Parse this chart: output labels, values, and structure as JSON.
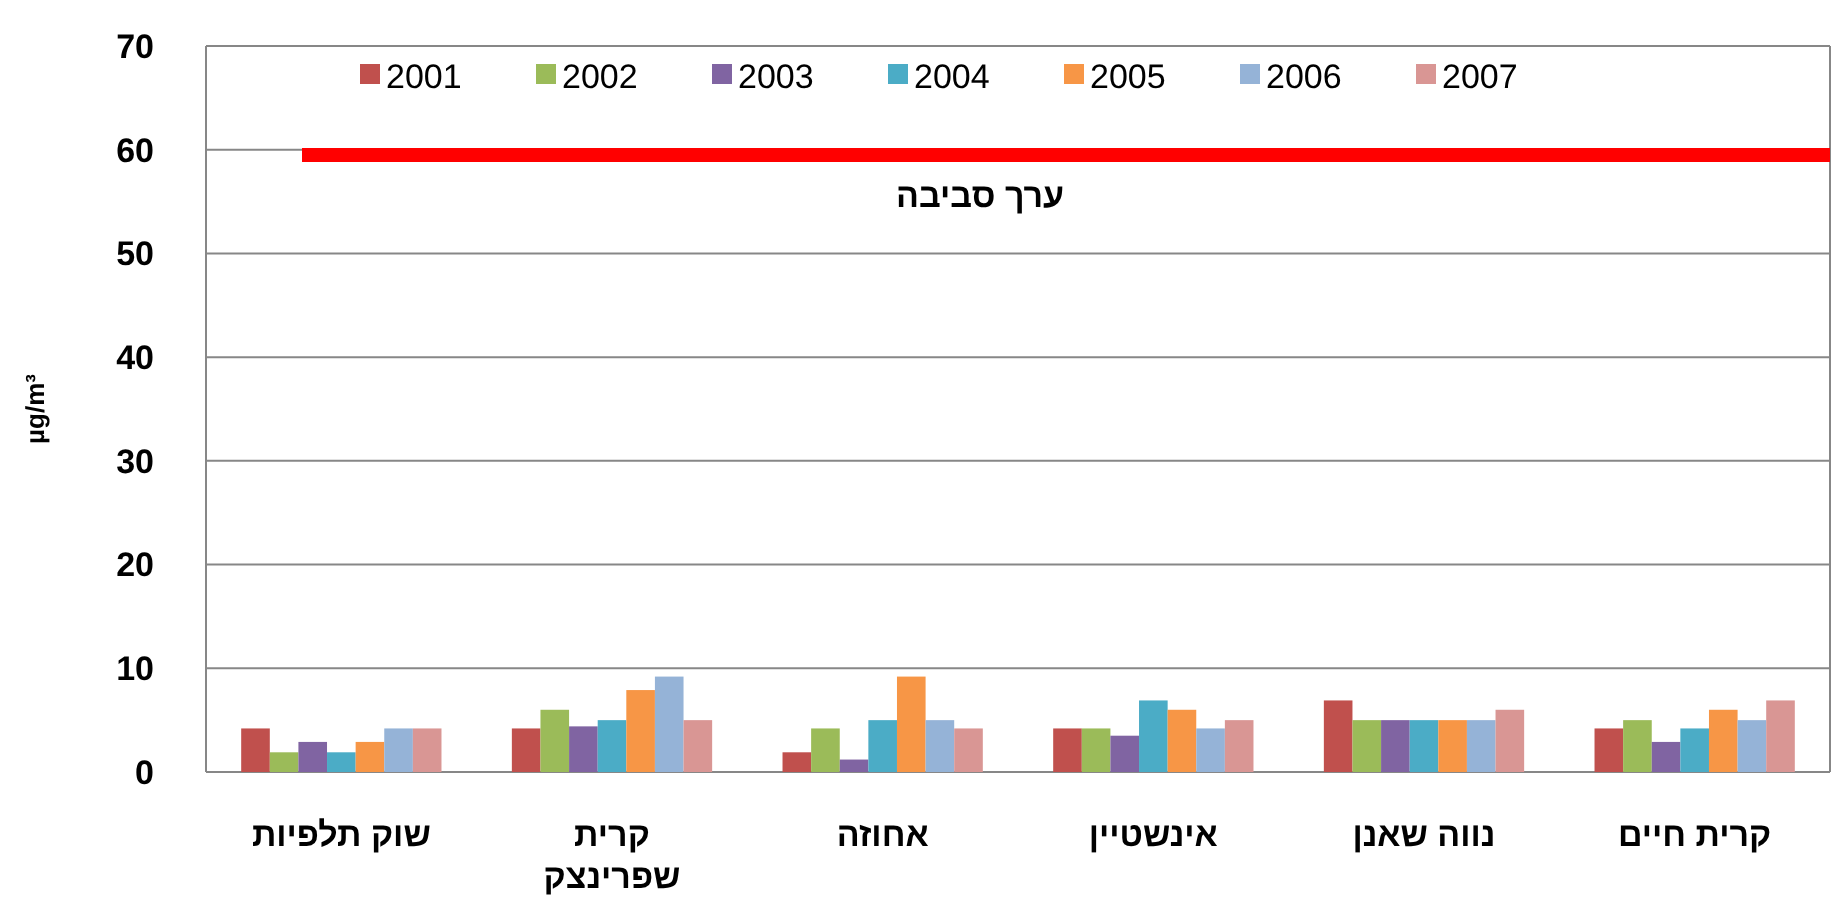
{
  "chart_data": {
    "type": "bar",
    "ylabel": "µg/m³",
    "categories": [
      "שוק תלפיות",
      "קרית שפרינצק",
      "אחוזה",
      "אינשטיין",
      "נווה שאנן",
      "קרית חיים"
    ],
    "series": [
      {
        "name": "2001",
        "color": "#c0504d",
        "values": [
          4.2,
          4.2,
          1.9,
          4.2,
          6.9,
          4.2
        ]
      },
      {
        "name": "2002",
        "color": "#9bbb59",
        "values": [
          1.9,
          6.0,
          4.2,
          4.2,
          5.0,
          5.0
        ]
      },
      {
        "name": "2003",
        "color": "#8064a2",
        "values": [
          2.9,
          4.4,
          1.2,
          3.5,
          5.0,
          2.9
        ]
      },
      {
        "name": "2004",
        "color": "#4bacc6",
        "values": [
          1.9,
          5.0,
          5.0,
          6.9,
          5.0,
          4.2
        ]
      },
      {
        "name": "2005",
        "color": "#f79646",
        "values": [
          2.9,
          7.9,
          9.2,
          6.0,
          5.0,
          6.0
        ]
      },
      {
        "name": "2006",
        "color": "#95b3d7",
        "values": [
          4.2,
          9.2,
          5.0,
          4.2,
          5.0,
          5.0
        ]
      },
      {
        "name": "2007",
        "color": "#d99694",
        "values": [
          4.2,
          5.0,
          4.2,
          5.0,
          6.0,
          6.9
        ]
      }
    ],
    "ylim": [
      0,
      70
    ],
    "yticks": [
      0,
      10,
      20,
      30,
      40,
      50,
      60,
      70
    ],
    "grid": "y",
    "legend": "top",
    "ref_lines": [
      {
        "axis": "y",
        "value": 59.5,
        "label": "ערך סביבה",
        "color": "#ff0000"
      }
    ]
  }
}
